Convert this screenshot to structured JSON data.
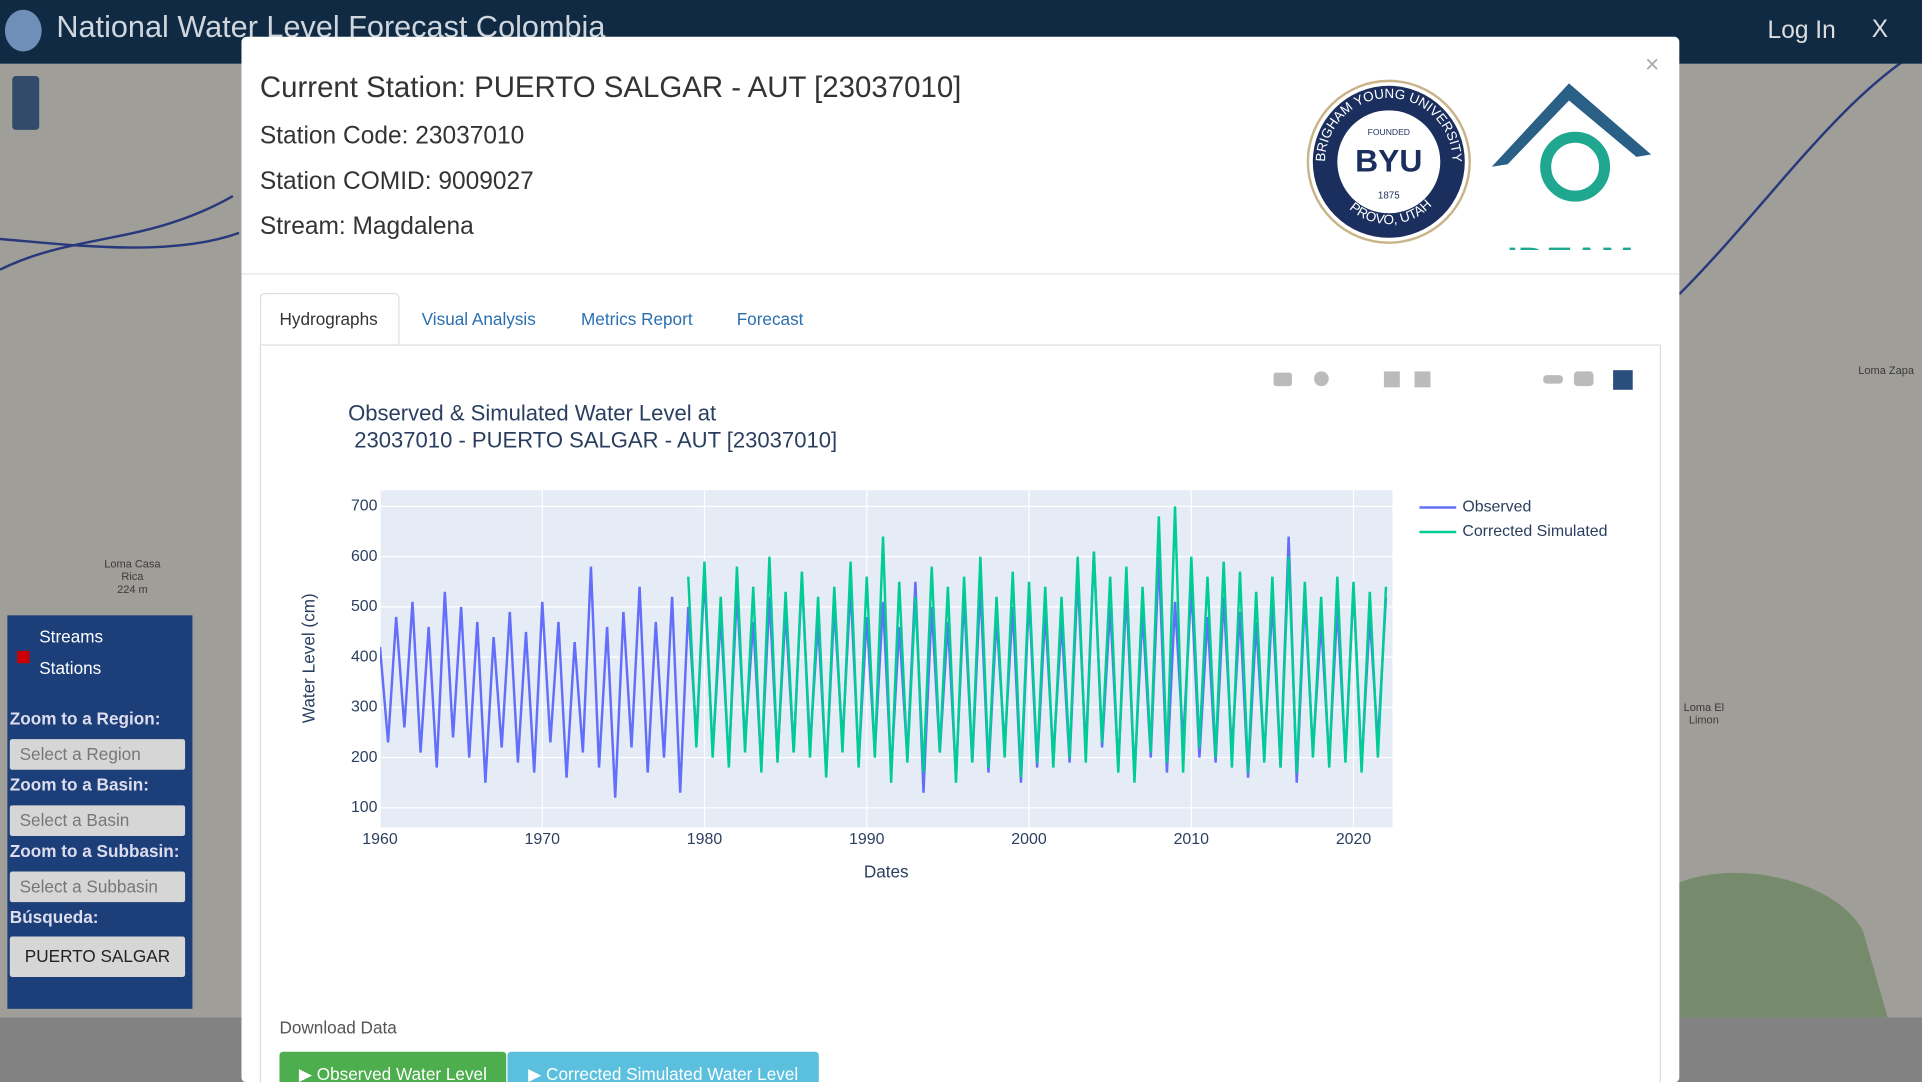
{
  "navbar": {
    "title": "National Water Level Forecast Colombia",
    "login": "Log In",
    "close": "X"
  },
  "map": {
    "labels": [
      "Loma Casa\nRica\n224 m",
      "Loma Zapa",
      "Loma El\nLimon"
    ]
  },
  "sidebar": {
    "layers": [
      "Streams",
      "Stations"
    ],
    "region_label": "Zoom to a Region:",
    "region_select": "Select a Region",
    "basin_label": "Zoom to a Basin:",
    "basin_select": "Select a Basin",
    "subbasin_label": "Zoom to a Subbasin:",
    "subbasin_select": "Select a Subbasin",
    "search_label": "Búsqueda:",
    "search_value": "PUERTO SALGAR"
  },
  "modal": {
    "close": "×",
    "station": "Current Station: PUERTO SALGAR - AUT [23037010]",
    "code": "Station Code: 23037010",
    "comid": "Station COMID: 9009027",
    "stream": "Stream: Magdalena",
    "byu": {
      "ring": "BRIGHAM YOUNG UNIVERSITY",
      "bottom": "PROVO, UTAH",
      "founded": "FOUNDED",
      "name": "BYU",
      "year": "1875"
    },
    "ideam": "IDEAM",
    "tabs": [
      "Hydrographs",
      "Visual Analysis",
      "Metrics Report",
      "Forecast"
    ],
    "download_label": "Download Data",
    "buttons": [
      "▶ Observed Water Level",
      "▶ Corrected Simulated Water Level"
    ]
  },
  "chart_data": {
    "type": "line",
    "title": [
      "Observed & Simulated Water Level at",
      " 23037010 - PUERTO SALGAR - AUT [23037010]"
    ],
    "x_label": "Dates",
    "y_label": "Water Level (cm)",
    "x": [
      1960,
      1960.5,
      1961,
      1961.5,
      1962,
      1962.5,
      1963,
      1963.5,
      1964,
      1964.5,
      1965,
      1965.5,
      1966,
      1966.5,
      1967,
      1967.5,
      1968,
      1968.5,
      1969,
      1969.5,
      1970,
      1970.5,
      1971,
      1971.5,
      1972,
      1972.5,
      1973,
      1973.5,
      1974,
      1974.5,
      1975,
      1975.5,
      1976,
      1976.5,
      1977,
      1977.5,
      1978,
      1978.5,
      1979,
      1979.5,
      1980,
      1980.5,
      1981,
      1981.5,
      1982,
      1982.5,
      1983,
      1983.5,
      1984,
      1984.5,
      1985,
      1985.5,
      1986,
      1986.5,
      1987,
      1987.5,
      1988,
      1988.5,
      1989,
      1989.5,
      1990,
      1990.5,
      1991,
      1991.5,
      1992,
      1992.5,
      1993,
      1993.5,
      1994,
      1994.5,
      1995,
      1995.5,
      1996,
      1996.5,
      1997,
      1997.5,
      1998,
      1998.5,
      1999,
      1999.5,
      2000,
      2000.5,
      2001,
      2001.5,
      2002,
      2002.5,
      2003,
      2003.5,
      2004,
      2004.5,
      2005,
      2005.5,
      2006,
      2006.5,
      2007,
      2007.5,
      2008,
      2008.5,
      2009,
      2009.5,
      2010,
      2010.5,
      2011,
      2011.5,
      2012,
      2012.5,
      2013,
      2013.5,
      2014,
      2014.5,
      2015,
      2015.5,
      2016,
      2016.5,
      2017,
      2017.5,
      2018,
      2018.5,
      2019,
      2019.5,
      2020,
      2020.5,
      2021,
      2021.5,
      2022
    ],
    "series": [
      {
        "name": "Observed",
        "color": "#636efa",
        "values": [
          420,
          230,
          480,
          260,
          510,
          210,
          460,
          180,
          530,
          240,
          500,
          200,
          470,
          150,
          440,
          220,
          490,
          190,
          450,
          170,
          510,
          230,
          470,
          160,
          430,
          210,
          580,
          180,
          460,
          120,
          490,
          220,
          540,
          170,
          470,
          200,
          520,
          130,
          500,
          240,
          560,
          210,
          480,
          190,
          530,
          230,
          470,
          180,
          520,
          200,
          490,
          210,
          560,
          220,
          470,
          170,
          500,
          230,
          540,
          190,
          480,
          210,
          510,
          170,
          460,
          200,
          550,
          130,
          500,
          210,
          470,
          160,
          520,
          190,
          540,
          170,
          480,
          220,
          500,
          150,
          520,
          180,
          490,
          200,
          470,
          190,
          560,
          210,
          610,
          220,
          500,
          180,
          530,
          160,
          490,
          200,
          600,
          170,
          510,
          230,
          540,
          200,
          480,
          190,
          520,
          210,
          490,
          160,
          470,
          200,
          510,
          180,
          640,
          150,
          520,
          210,
          470,
          190,
          500,
          200,
          540,
          180,
          480,
          230,
          520
        ]
      },
      {
        "name": "Corrected Simulated",
        "color": "#00cc96",
        "values": [
          null,
          null,
          null,
          null,
          null,
          null,
          null,
          null,
          null,
          null,
          null,
          null,
          null,
          null,
          null,
          null,
          null,
          null,
          null,
          null,
          null,
          null,
          null,
          null,
          null,
          null,
          null,
          null,
          null,
          null,
          null,
          null,
          null,
          null,
          null,
          null,
          null,
          null,
          560,
          220,
          590,
          200,
          520,
          180,
          580,
          210,
          540,
          170,
          600,
          190,
          530,
          210,
          570,
          200,
          520,
          160,
          540,
          210,
          590,
          180,
          560,
          200,
          640,
          150,
          550,
          190,
          520,
          170,
          580,
          210,
          540,
          150,
          560,
          190,
          600,
          180,
          520,
          200,
          570,
          160,
          550,
          190,
          540,
          180,
          520,
          200,
          600,
          190,
          610,
          230,
          560,
          170,
          580,
          150,
          540,
          210,
          680,
          190,
          700,
          170,
          600,
          220,
          560,
          200,
          590,
          180,
          570,
          170,
          530,
          190,
          560,
          180,
          600,
          170,
          550,
          200,
          520,
          180,
          560,
          190,
          550,
          170,
          530,
          200,
          540
        ]
      }
    ],
    "xlim": [
      1960,
      2022.4
    ],
    "ylim": [
      61,
      732
    ],
    "xticks": [
      1960,
      1970,
      1980,
      1990,
      2000,
      2010,
      2020
    ],
    "yticks": [
      100,
      200,
      300,
      400,
      500,
      600,
      700
    ],
    "grid": true,
    "plot_bg": "#e5ecf6"
  }
}
